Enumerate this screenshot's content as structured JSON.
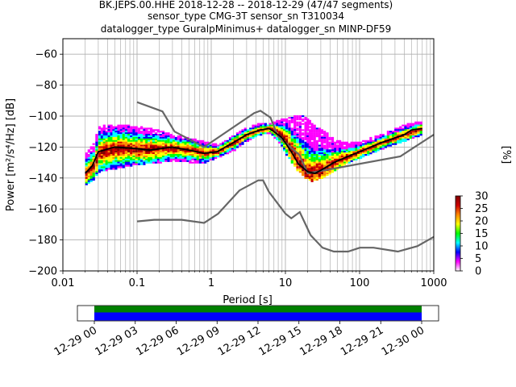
{
  "title": {
    "line1": "BK.JEPS.00.HHE   2018-12-28 -- 2018-12-29  (47/47 segments)",
    "line2": "sensor_type CMG-3T sensor_sn T310034",
    "line3": "datalogger_type GuralpMinimus+ datalogger_sn MINP-DF59"
  },
  "colors": {
    "noise_model": "#666666",
    "mean": "#000000",
    "coverage_top": "#008000",
    "coverage_bottom": "#0000ff"
  },
  "chart_data": {
    "type": "heatmap",
    "subtype": "probabilistic-power-spectral-density",
    "xlabel": "Period [s]",
    "ylabel": "Power [m²/s⁴/Hz] [dB]",
    "x_scale": "log",
    "xlim": [
      0.01,
      1000
    ],
    "ylim": [
      -200,
      -50
    ],
    "grid": true,
    "xticks": [
      {
        "value": 0.01,
        "label": "0.01"
      },
      {
        "value": 0.1,
        "label": "0.1"
      },
      {
        "value": 1,
        "label": "1"
      },
      {
        "value": 10,
        "label": "10"
      },
      {
        "value": 100,
        "label": "100"
      },
      {
        "value": 1000,
        "label": "1000"
      }
    ],
    "yticks": [
      -60,
      -80,
      -100,
      -120,
      -140,
      -160,
      -180,
      -200
    ],
    "colorbar": {
      "label": "[%]",
      "range": [
        0,
        30
      ],
      "ticks": [
        0,
        5,
        10,
        15,
        20,
        25,
        30
      ],
      "stops": [
        "#ffffff",
        "#ff00ff",
        "#0000ff",
        "#00ffff",
        "#00ff00",
        "#ffff00",
        "#ff8800",
        "#cc0000",
        "#800000"
      ]
    },
    "mean_curve": [
      [
        0.02,
        -137
      ],
      [
        0.025,
        -132
      ],
      [
        0.03,
        -123
      ],
      [
        0.05,
        -120
      ],
      [
        0.1,
        -121
      ],
      [
        0.15,
        -122
      ],
      [
        0.3,
        -120
      ],
      [
        0.5,
        -122
      ],
      [
        0.8,
        -124
      ],
      [
        1.2,
        -123
      ],
      [
        2,
        -117
      ],
      [
        3,
        -112
      ],
      [
        4.5,
        -109
      ],
      [
        6,
        -108
      ],
      [
        7,
        -110
      ],
      [
        9,
        -114
      ],
      [
        12,
        -123
      ],
      [
        15,
        -131
      ],
      [
        20,
        -136
      ],
      [
        25,
        -137
      ],
      [
        30,
        -135
      ],
      [
        45,
        -130
      ],
      [
        70,
        -126
      ],
      [
        100,
        -123
      ],
      [
        200,
        -117
      ],
      [
        400,
        -112
      ],
      [
        500,
        -109
      ],
      [
        700,
        -108
      ]
    ],
    "nhnm": [
      [
        0.1,
        -91
      ],
      [
        0.22,
        -97
      ],
      [
        0.32,
        -110
      ],
      [
        0.8,
        -120
      ],
      [
        3.8,
        -98
      ],
      [
        4.6,
        -96.5
      ],
      [
        6.3,
        -101
      ],
      [
        7.9,
        -113
      ],
      [
        15.4,
        -125
      ],
      [
        20,
        -137
      ],
      [
        354.8,
        -126
      ],
      [
        1000,
        -112
      ]
    ],
    "nlnm": [
      [
        0.1,
        -168
      ],
      [
        0.17,
        -167
      ],
      [
        0.4,
        -167
      ],
      [
        0.8,
        -169
      ],
      [
        1.24,
        -163
      ],
      [
        2.4,
        -148
      ],
      [
        4.3,
        -141.5
      ],
      [
        5,
        -141.5
      ],
      [
        6,
        -149
      ],
      [
        10,
        -163
      ],
      [
        12,
        -166
      ],
      [
        15.6,
        -162
      ],
      [
        21.9,
        -177
      ],
      [
        31.6,
        -185
      ],
      [
        45,
        -187.5
      ],
      [
        70,
        -187.5
      ],
      [
        101,
        -185
      ],
      [
        154,
        -185
      ],
      [
        328,
        -187.5
      ],
      [
        600,
        -184
      ],
      [
        1000,
        -178
      ]
    ],
    "psd_bands": [
      {
        "period": 0.02,
        "low": -144,
        "high": -124,
        "peak": -137
      },
      {
        "period": 0.025,
        "low": -141,
        "high": -118,
        "peak": -132
      },
      {
        "period": 0.03,
        "low": -136,
        "high": -107,
        "peak": -124
      },
      {
        "period": 0.05,
        "low": -134,
        "high": -106,
        "peak": -121
      },
      {
        "period": 0.08,
        "low": -132,
        "high": -107,
        "peak": -121
      },
      {
        "period": 0.12,
        "low": -131,
        "high": -108,
        "peak": -122
      },
      {
        "period": 0.2,
        "low": -130,
        "high": -110,
        "peak": -121
      },
      {
        "period": 0.3,
        "low": -129,
        "high": -113,
        "peak": -121
      },
      {
        "period": 0.5,
        "low": -130,
        "high": -115,
        "peak": -122
      },
      {
        "period": 0.8,
        "low": -130,
        "high": -117,
        "peak": -124
      },
      {
        "period": 1.2,
        "low": -127,
        "high": -119,
        "peak": -123
      },
      {
        "period": 2,
        "low": -122,
        "high": -112,
        "peak": -117
      },
      {
        "period": 3,
        "low": -116,
        "high": -108,
        "peak": -112
      },
      {
        "period": 4.5,
        "low": -112,
        "high": -105,
        "peak": -109
      },
      {
        "period": 6,
        "low": -111,
        "high": -105,
        "peak": -108
      },
      {
        "period": 8,
        "low": -117,
        "high": -103,
        "peak": -111
      },
      {
        "period": 10,
        "low": -125,
        "high": -102,
        "peak": -116
      },
      {
        "period": 14,
        "low": -135,
        "high": -100,
        "peak": -128
      },
      {
        "period": 18,
        "low": -140,
        "high": -101,
        "peak": -135
      },
      {
        "period": 22,
        "low": -142,
        "high": -105,
        "peak": -137
      },
      {
        "period": 30,
        "low": -140,
        "high": -109,
        "peak": -135
      },
      {
        "period": 45,
        "low": -135,
        "high": -116,
        "peak": -130
      },
      {
        "period": 70,
        "low": -130,
        "high": -118,
        "peak": -126
      },
      {
        "period": 100,
        "low": -127,
        "high": -117,
        "peak": -123
      },
      {
        "period": 200,
        "low": -121,
        "high": -112,
        "peak": -117
      },
      {
        "period": 400,
        "low": -116,
        "high": -106,
        "peak": -112
      },
      {
        "period": 700,
        "low": -112,
        "high": -104,
        "peak": -108
      }
    ],
    "timeline": {
      "ticks": [
        "12-29 00",
        "12-29 03",
        "12-29 06",
        "12-29 09",
        "12-29 12",
        "12-29 15",
        "12-29 18",
        "12-29 21",
        "12-30 00"
      ]
    }
  }
}
